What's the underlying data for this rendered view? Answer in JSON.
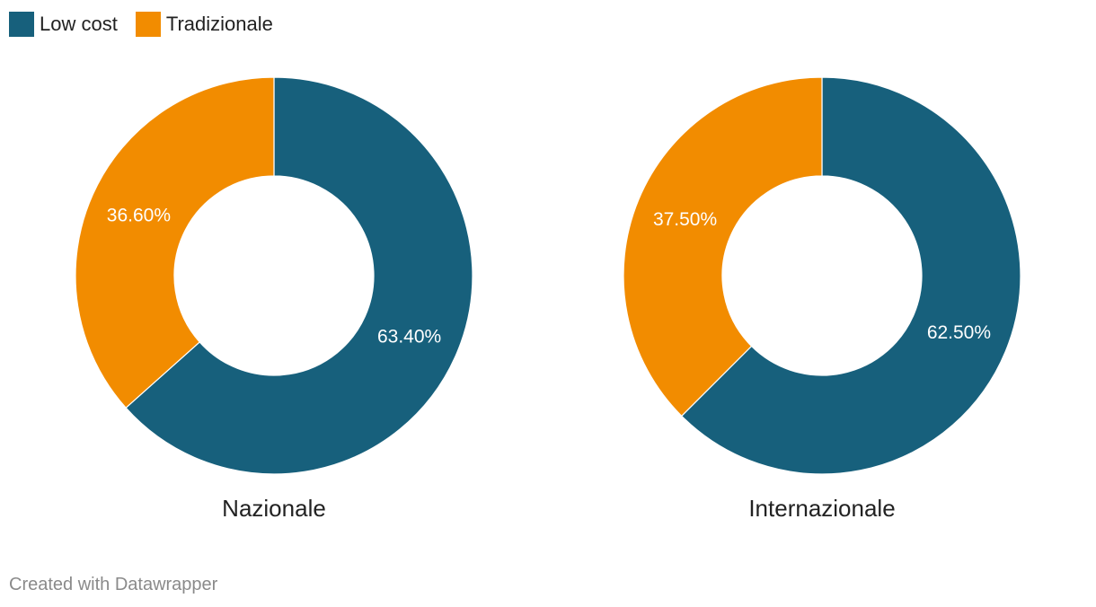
{
  "legend": [
    {
      "label": "Low cost",
      "color": "#17607c"
    },
    {
      "label": "Tradizionale",
      "color": "#f28c00"
    }
  ],
  "chart_data": [
    {
      "type": "pie",
      "title": "Nazionale",
      "donut": true,
      "slices": [
        {
          "label": "Low cost",
          "value": 63.4,
          "display": "63.40%",
          "color": "#17607c"
        },
        {
          "label": "Tradizionale",
          "value": 36.6,
          "display": "36.60%",
          "color": "#f28c00"
        }
      ]
    },
    {
      "type": "pie",
      "title": "Internazionale",
      "donut": true,
      "slices": [
        {
          "label": "Low cost",
          "value": 62.5,
          "display": "62.50%",
          "color": "#17607c"
        },
        {
          "label": "Tradizionale",
          "value": 37.5,
          "display": "37.50%",
          "color": "#f28c00"
        }
      ]
    }
  ],
  "footer": {
    "text": "Created with Datawrapper"
  }
}
